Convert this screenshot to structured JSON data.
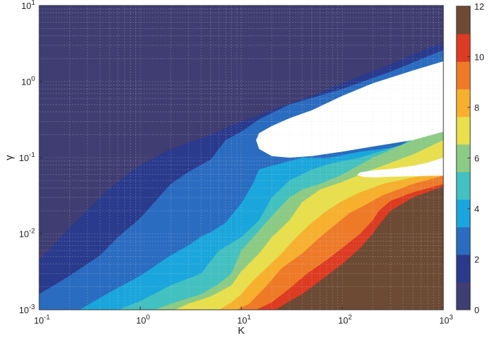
{
  "chart_data": {
    "type": "heatmap",
    "title": "",
    "xlabel": "K",
    "ylabel": "γ",
    "x_scale": "log",
    "y_scale": "log",
    "xlim": [
      0.1,
      1000
    ],
    "ylim": [
      0.001,
      10
    ],
    "x_ticks": [
      {
        "value": 0.1,
        "base": "10",
        "exp": "-1"
      },
      {
        "value": 1,
        "base": "10",
        "exp": "0"
      },
      {
        "value": 10,
        "base": "10",
        "exp": "1"
      },
      {
        "value": 100,
        "base": "10",
        "exp": "2"
      },
      {
        "value": 1000,
        "base": "10",
        "exp": "3"
      }
    ],
    "y_ticks": [
      {
        "value": 0.001,
        "base": "10",
        "exp": "-3"
      },
      {
        "value": 0.01,
        "base": "10",
        "exp": "-2"
      },
      {
        "value": 0.1,
        "base": "10",
        "exp": "-1"
      },
      {
        "value": 1,
        "base": "10",
        "exp": "0"
      },
      {
        "value": 10,
        "base": "10",
        "exp": "1"
      }
    ],
    "grid": "dotted, faint",
    "colorbar": {
      "placement": "right",
      "range": [
        0,
        12
      ],
      "ticks": [
        "0",
        "2",
        "4",
        "6",
        "8",
        "10",
        "12"
      ],
      "colors": [
        "#3f3d72",
        "#2a3a8c",
        "#2a6cc0",
        "#1aa6dc",
        "#42c1c0",
        "#8ccb84",
        "#e8df4c",
        "#f7b02e",
        "#ee7a28",
        "#dd3b22",
        "#6c4a34"
      ]
    },
    "levels": [
      {
        "level": 1,
        "color": "#2a3a8c",
        "boundary": [
          [
            0.1,
            0.0045
          ],
          [
            0.2,
            0.012
          ],
          [
            0.5,
            0.04
          ],
          [
            1,
            0.08
          ],
          [
            2,
            0.13
          ],
          [
            5,
            0.2
          ],
          [
            10,
            0.3
          ],
          [
            20,
            0.42
          ],
          [
            50,
            0.65
          ],
          [
            100,
            0.95
          ],
          [
            300,
            1.7
          ],
          [
            1000,
            3.3
          ]
        ]
      },
      {
        "level": 2,
        "color": "#2a6cc0",
        "boundary": [
          [
            0.1,
            0.0016
          ],
          [
            0.2,
            0.0028
          ],
          [
            0.4,
            0.0052
          ],
          [
            0.6,
            0.009
          ],
          [
            1,
            0.016
          ],
          [
            2,
            0.045
          ],
          [
            3,
            0.065
          ],
          [
            5,
            0.095
          ],
          [
            7,
            0.17
          ],
          [
            10,
            0.22
          ],
          [
            15,
            0.32
          ],
          [
            30,
            0.5
          ],
          [
            100,
            0.8
          ],
          [
            300,
            1.35
          ],
          [
            1000,
            2.6
          ]
        ]
      },
      {
        "level": 3,
        "color": "#1aa6dc",
        "boundary": [
          [
            0.25,
            0.001
          ],
          [
            0.5,
            0.0017
          ],
          [
            1,
            0.0028
          ],
          [
            2,
            0.0052
          ],
          [
            3,
            0.007
          ],
          [
            4,
            0.0092
          ],
          [
            5,
            0.0105
          ],
          [
            7,
            0.014
          ],
          [
            10,
            0.025
          ],
          [
            13,
            0.045
          ],
          [
            15,
            0.07
          ],
          [
            20,
            0.078
          ],
          [
            40,
            0.1
          ],
          [
            70,
            0.098
          ],
          [
            150,
            0.12
          ],
          [
            400,
            0.14
          ],
          [
            1000,
            0.18
          ]
        ]
      },
      {
        "level": 4,
        "color": "#42c1c0",
        "boundary": [
          [
            0.6,
            0.001
          ],
          [
            1,
            0.0013
          ],
          [
            2,
            0.0021
          ],
          [
            4,
            0.003
          ],
          [
            6,
            0.006
          ],
          [
            10,
            0.009
          ],
          [
            15,
            0.015
          ],
          [
            20,
            0.03
          ],
          [
            30,
            0.05
          ],
          [
            50,
            0.07
          ],
          [
            80,
            0.085
          ],
          [
            150,
            0.1
          ],
          [
            400,
            0.15
          ],
          [
            1000,
            0.35
          ]
        ]
      },
      {
        "level": 5,
        "color": "#8ccb84",
        "boundary": [
          [
            1.4,
            0.001
          ],
          [
            2,
            0.0012
          ],
          [
            4,
            0.0016
          ],
          [
            6,
            0.0022
          ],
          [
            8,
            0.003
          ],
          [
            10,
            0.006
          ],
          [
            15,
            0.011
          ],
          [
            20,
            0.017
          ],
          [
            30,
            0.03
          ],
          [
            40,
            0.038
          ],
          [
            60,
            0.045
          ],
          [
            100,
            0.06
          ],
          [
            200,
            0.1
          ],
          [
            500,
            0.17
          ],
          [
            1000,
            0.25
          ]
        ]
      },
      {
        "level": 6,
        "color": "#e8df4c",
        "boundary": [
          [
            2.2,
            0.001
          ],
          [
            3,
            0.0012
          ],
          [
            5,
            0.0015
          ],
          [
            8,
            0.0021
          ],
          [
            10,
            0.0032
          ],
          [
            15,
            0.0055
          ],
          [
            20,
            0.009
          ],
          [
            30,
            0.015
          ],
          [
            40,
            0.026
          ],
          [
            60,
            0.038
          ],
          [
            100,
            0.048
          ],
          [
            200,
            0.07
          ],
          [
            500,
            0.11
          ],
          [
            1000,
            0.17
          ]
        ]
      },
      {
        "level": 7,
        "color": "#f7b02e",
        "boundary": [
          [
            6,
            0.001
          ],
          [
            8,
            0.00125
          ],
          [
            10,
            0.0016
          ],
          [
            13,
            0.0024
          ],
          [
            18,
            0.0036
          ],
          [
            25,
            0.0055
          ],
          [
            35,
            0.009
          ],
          [
            50,
            0.014
          ],
          [
            70,
            0.02
          ],
          [
            100,
            0.027
          ],
          [
            150,
            0.035
          ],
          [
            250,
            0.045
          ],
          [
            500,
            0.055
          ],
          [
            1000,
            0.065
          ]
        ]
      },
      {
        "level": 8,
        "color": "#ee7a28",
        "boundary": [
          [
            9,
            0.001
          ],
          [
            12,
            0.0012
          ],
          [
            18,
            0.0021
          ],
          [
            25,
            0.0035
          ],
          [
            40,
            0.0055
          ],
          [
            60,
            0.009
          ],
          [
            90,
            0.014
          ],
          [
            120,
            0.019
          ],
          [
            150,
            0.022
          ],
          [
            250,
            0.032
          ],
          [
            500,
            0.045
          ],
          [
            1000,
            0.058
          ]
        ]
      },
      {
        "level": 9,
        "color": "#dd3b22",
        "boundary": [
          [
            14,
            0.001
          ],
          [
            20,
            0.00125
          ],
          [
            30,
            0.0019
          ],
          [
            45,
            0.003
          ],
          [
            70,
            0.0045
          ],
          [
            100,
            0.0065
          ],
          [
            150,
            0.01
          ],
          [
            200,
            0.015
          ],
          [
            230,
            0.02
          ],
          [
            300,
            0.027
          ],
          [
            500,
            0.035
          ],
          [
            1000,
            0.045
          ]
        ]
      },
      {
        "level": 10,
        "color": "#6c4a34",
        "boundary": [
          [
            22,
            0.001
          ],
          [
            30,
            0.0013
          ],
          [
            40,
            0.0016
          ],
          [
            50,
            0.002
          ],
          [
            70,
            0.0028
          ],
          [
            100,
            0.004
          ],
          [
            150,
            0.0065
          ],
          [
            200,
            0.01
          ],
          [
            230,
            0.013
          ],
          [
            300,
            0.02
          ],
          [
            500,
            0.03
          ],
          [
            1000,
            0.042
          ]
        ]
      }
    ],
    "blank_regions": [
      {
        "description_key": "upper",
        "outline": [
          [
            1000,
            1.85
          ],
          [
            500,
            1.4
          ],
          [
            200,
            0.95
          ],
          [
            100,
            0.65
          ],
          [
            50,
            0.42
          ],
          [
            30,
            0.33
          ],
          [
            20,
            0.26
          ],
          [
            15,
            0.21
          ],
          [
            14,
            0.17
          ],
          [
            15,
            0.13
          ],
          [
            20,
            0.105
          ],
          [
            30,
            0.1
          ],
          [
            50,
            0.105
          ],
          [
            100,
            0.12
          ],
          [
            200,
            0.14
          ],
          [
            500,
            0.17
          ],
          [
            1000,
            0.22
          ]
        ]
      },
      {
        "description_key": "lower",
        "outline": [
          [
            1000,
            0.1
          ],
          [
            700,
            0.086
          ],
          [
            500,
            0.078
          ],
          [
            300,
            0.071
          ],
          [
            200,
            0.068
          ],
          [
            150,
            0.064
          ],
          [
            140,
            0.059
          ],
          [
            160,
            0.056
          ],
          [
            200,
            0.055
          ],
          [
            300,
            0.056
          ],
          [
            500,
            0.057
          ],
          [
            1000,
            0.058
          ]
        ]
      }
    ]
  }
}
